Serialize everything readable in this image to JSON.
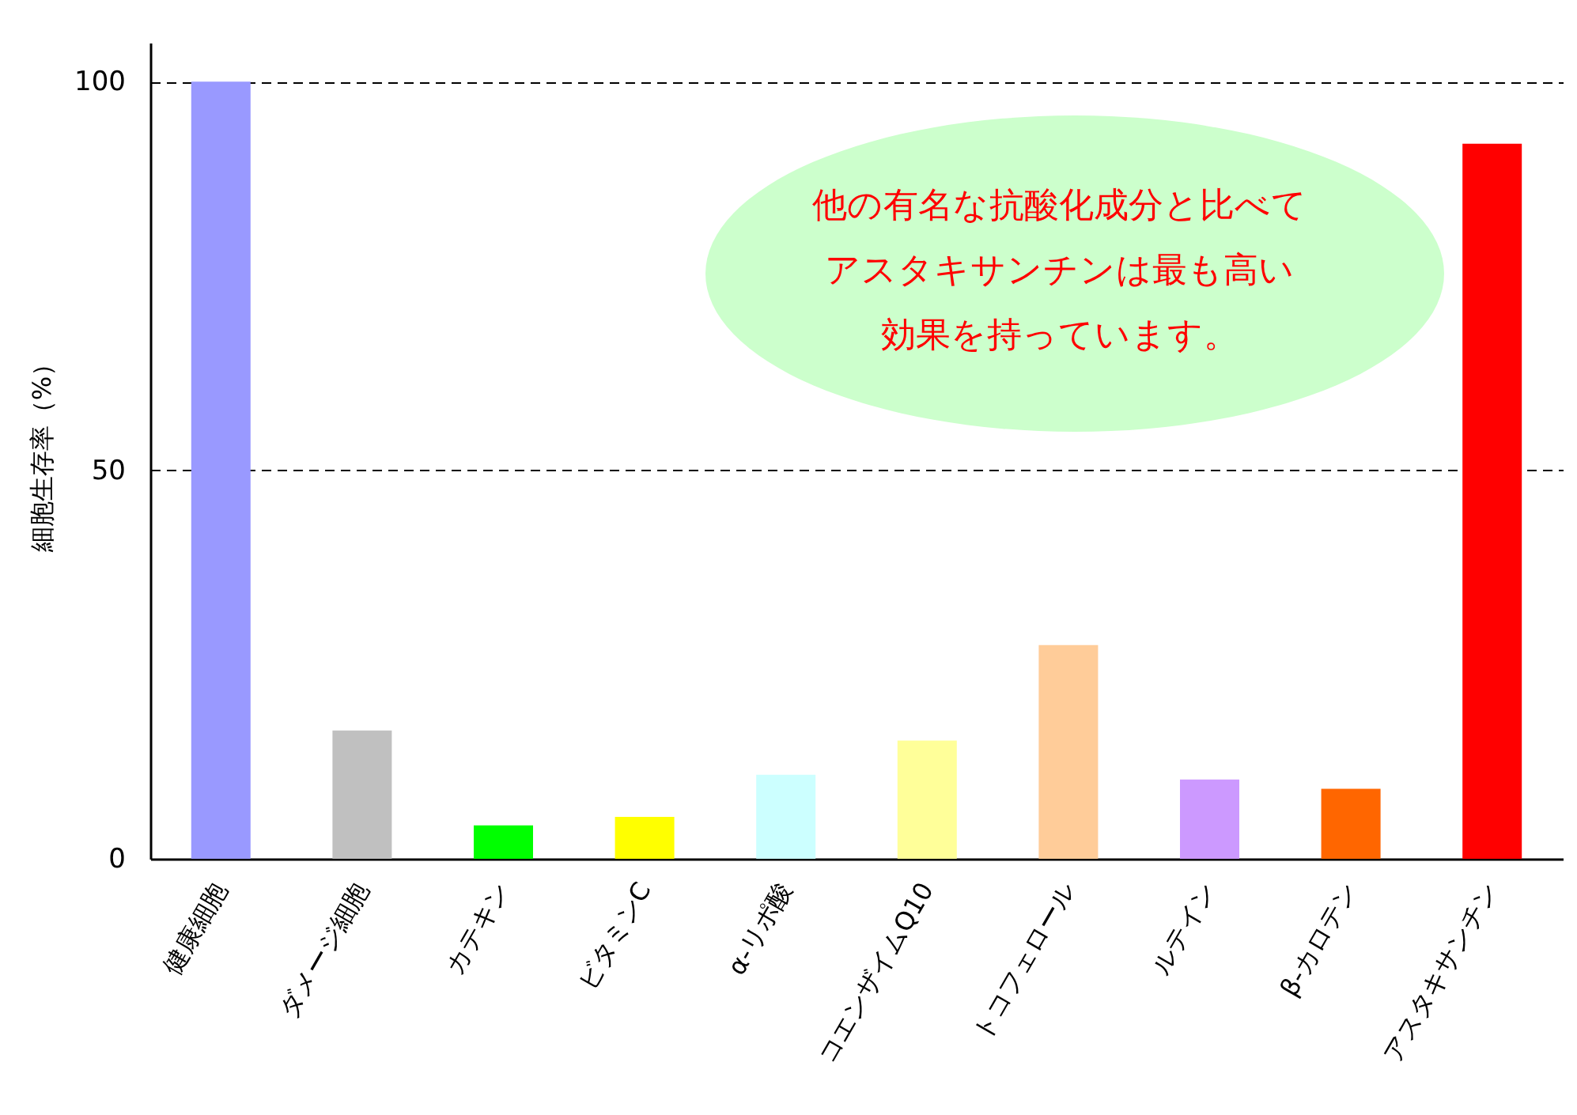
{
  "chart_data": {
    "type": "bar",
    "ylabel": "細胞生存率（%）",
    "categories": [
      "健康細胞",
      "ダメージ細胞",
      "カテキン",
      "ビタミンC",
      "α-リポ酸",
      "コエンザイムQ10",
      "トコフェロール",
      "ルテイン",
      "β-カロテン",
      "アスタキサンチン"
    ],
    "values": [
      100,
      16.5,
      4.3,
      5.4,
      10.8,
      15.2,
      27.5,
      10.2,
      9.0,
      92
    ],
    "colors": [
      "#9999ff",
      "#c0c0c0",
      "#00ff00",
      "#ffff00",
      "#ccffff",
      "#ffff99",
      "#ffcc99",
      "#cc99ff",
      "#ff6600",
      "#ff0000"
    ],
    "ylim": [
      0,
      105
    ],
    "yticks": [
      0,
      50,
      100
    ],
    "grid": "y",
    "annotations": [
      "他の有名な抗酸化成分と比べてアスタキサンチンは最も高い効果を持っています。"
    ]
  }
}
